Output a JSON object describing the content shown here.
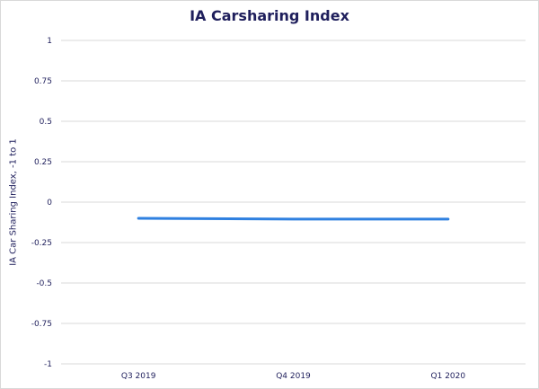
{
  "chart_data": {
    "type": "line",
    "title": "IA Carsharing Index",
    "xlabel": "",
    "ylabel": "IA Car Sharing  Index, -1 to 1",
    "categories": [
      "Q3 2019",
      "Q4 2019",
      "Q1 2020"
    ],
    "series": [
      {
        "values": [
          -0.1,
          -0.105,
          -0.105
        ],
        "color": "#2f80e0"
      }
    ],
    "ylim": [
      -1,
      1
    ],
    "yticks": [
      1,
      0.75,
      0.5,
      0.25,
      0,
      -0.25,
      -0.5,
      -0.75,
      -1
    ],
    "ytick_labels": [
      "1",
      "0.75",
      "0.5",
      "0.25",
      "0",
      "-0.25",
      "-0.5",
      "-0.75",
      "-1"
    ],
    "grid": true,
    "legend": "none"
  },
  "colors": {
    "title": "#1f1f5c",
    "grid": "#d9d9d9",
    "line": "#2f80e0"
  }
}
